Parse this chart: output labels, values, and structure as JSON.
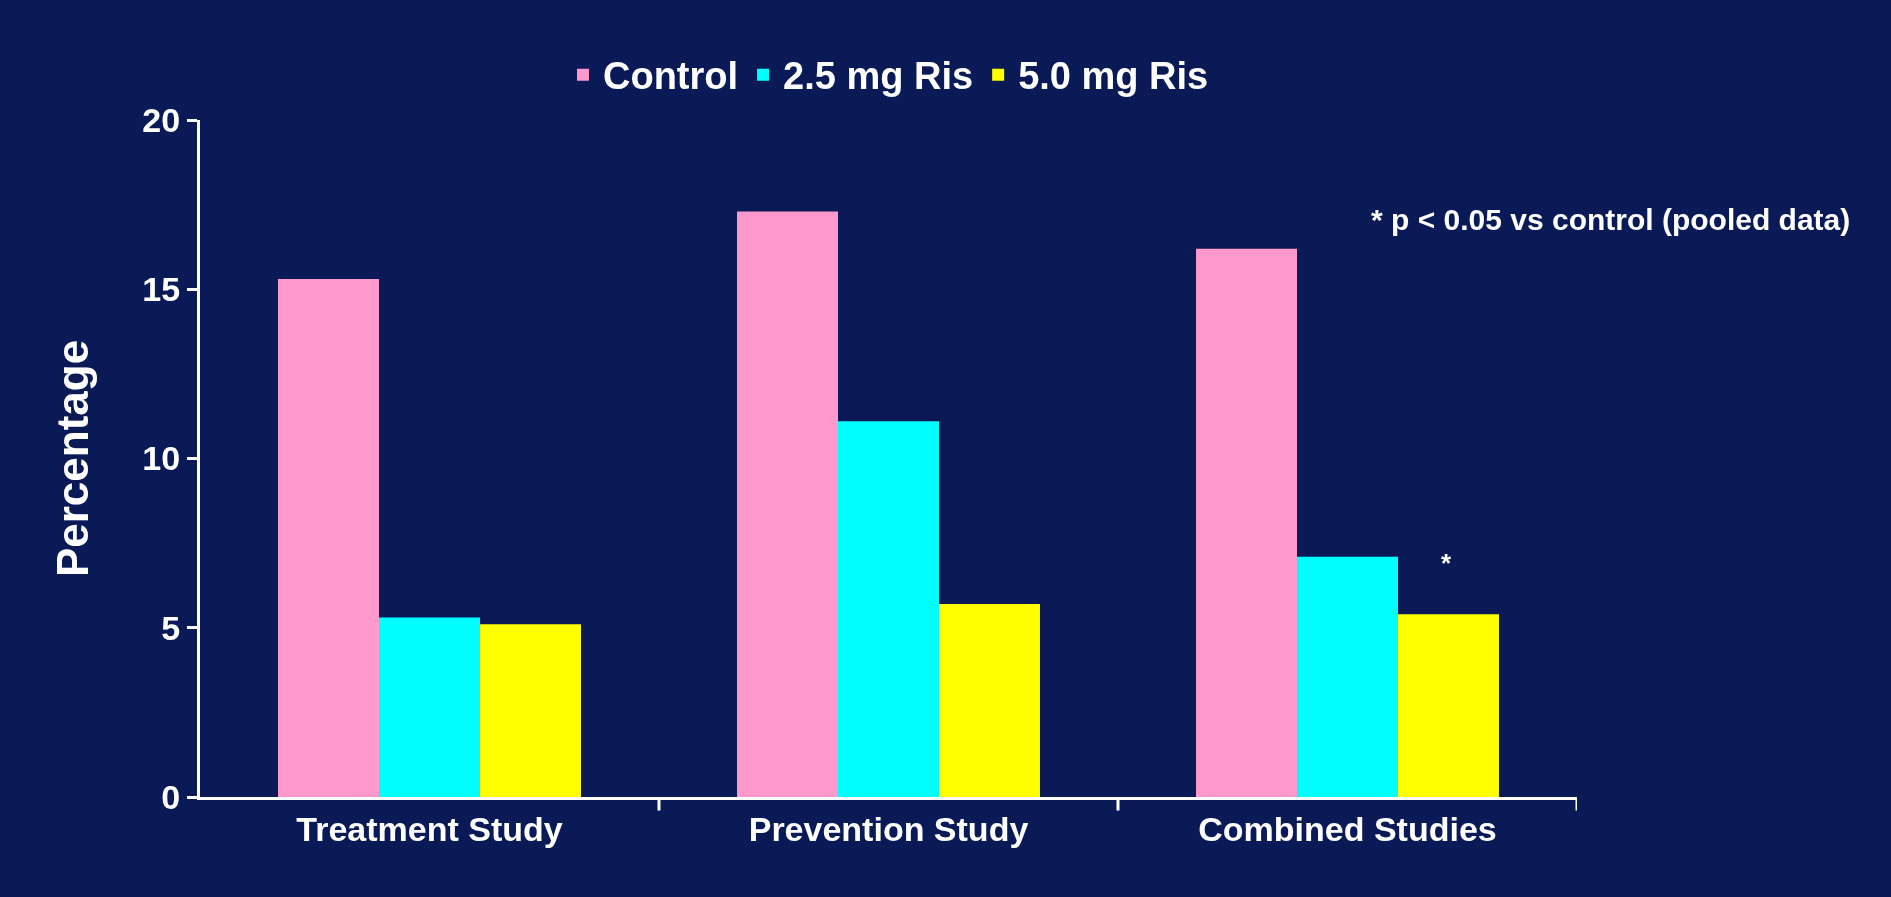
{
  "chart_data": {
    "type": "bar",
    "ylabel": "Percentage",
    "categories": [
      "Treatment Study",
      "Prevention Study",
      "Combined Studies"
    ],
    "series": [
      {
        "name": "Control",
        "color": "#ff99cc",
        "values": [
          15.3,
          17.3,
          16.2
        ]
      },
      {
        "name": "2.5 mg Ris",
        "color": "#00ffff",
        "values": [
          5.3,
          11.1,
          7.1
        ]
      },
      {
        "name": "5.0 mg Ris",
        "color": "#ffff00",
        "values": [
          5.1,
          5.7,
          5.4
        ]
      }
    ],
    "ylim": [
      0,
      20
    ],
    "yticks": [
      0,
      5,
      10,
      15,
      20
    ],
    "grid": false,
    "legend": "top",
    "annotations": [
      "* p < 0.05 vs control (pooled data)",
      "*"
    ]
  }
}
